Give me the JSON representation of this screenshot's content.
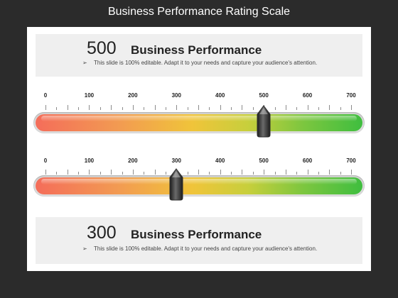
{
  "page": {
    "title": "Business Performance Rating Scale"
  },
  "top_card": {
    "value": "500",
    "heading": "Business Performance",
    "bullet": "➢",
    "description": "This slide is 100% editable. Adapt it to your needs and capture your audience's attention."
  },
  "bottom_card": {
    "value": "300",
    "heading": "Business Performance",
    "bullet": "➢",
    "description": "This slide is 100% editable. Adapt it to your needs and capture your audience's attention."
  },
  "scales": [
    {
      "labels": [
        "0",
        "100",
        "200",
        "300",
        "400",
        "500",
        "600",
        "700"
      ],
      "min": 0,
      "max": 700,
      "pointer_value": 500
    },
    {
      "labels": [
        "0",
        "100",
        "200",
        "300",
        "400",
        "500",
        "600",
        "700"
      ],
      "min": 0,
      "max": 700,
      "pointer_value": 300
    }
  ],
  "colors": {
    "low": "#f46d5a",
    "mid": "#f0c43a",
    "high": "#3fbe3f",
    "pointer": "#2e2e2e"
  }
}
